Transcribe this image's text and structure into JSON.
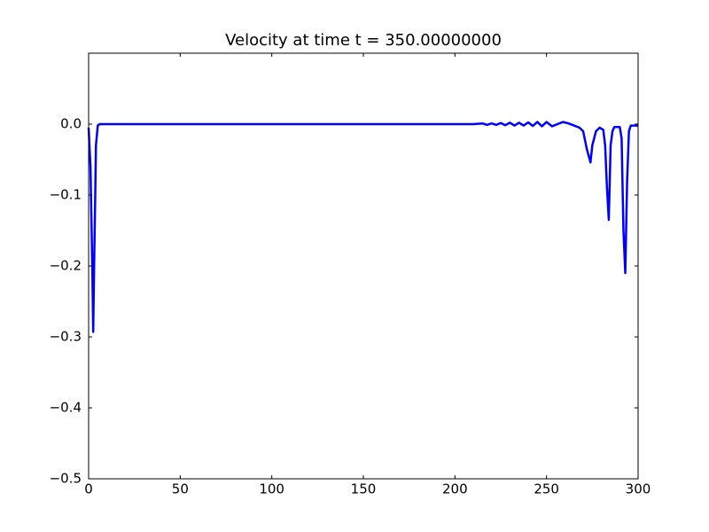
{
  "chart_data": {
    "type": "line",
    "title": "Velocity at time t =   350.00000000",
    "x": [
      0,
      1,
      2,
      2.5,
      3,
      3.5,
      4,
      5,
      6,
      50,
      100,
      150,
      200,
      210,
      215,
      217.5,
      220,
      222.5,
      225,
      227.5,
      230,
      232.5,
      235,
      237.5,
      240,
      242.5,
      245,
      247.5,
      250,
      253,
      256,
      259,
      262,
      265,
      268,
      270,
      272,
      274,
      275,
      277,
      279,
      281,
      282,
      283,
      284,
      285,
      286,
      287,
      290,
      291,
      292,
      293,
      294,
      295,
      296,
      300
    ],
    "series": [
      {
        "color": "#0000ff",
        "values": [
          -0.005,
          -0.06,
          -0.2,
          -0.293,
          -0.2,
          -0.12,
          -0.03,
          -0.002,
          0,
          0,
          0,
          0,
          0,
          0,
          0.001,
          -0.001,
          0.001,
          -0.001,
          0.0015,
          -0.0015,
          0.002,
          -0.002,
          0.002,
          -0.002,
          0.0025,
          -0.0025,
          0.003,
          -0.003,
          0.003,
          -0.003,
          0,
          0.003,
          0.001,
          -0.002,
          -0.005,
          -0.01,
          -0.035,
          -0.054,
          -0.03,
          -0.01,
          -0.005,
          -0.008,
          -0.03,
          -0.09,
          -0.135,
          -0.03,
          -0.01,
          -0.004,
          -0.004,
          -0.02,
          -0.15,
          -0.21,
          -0.08,
          -0.01,
          -0.002,
          -0.002
        ]
      }
    ],
    "xlim": [
      0,
      300
    ],
    "ylim": [
      -0.5,
      0.1
    ],
    "xticks": [
      0,
      50,
      100,
      150,
      200,
      250,
      300
    ],
    "yticks": [
      {
        "value": 0,
        "label": "0.0"
      },
      {
        "value": -0.1,
        "label": "−0.1"
      },
      {
        "value": -0.2,
        "label": "−0.2"
      },
      {
        "value": -0.3,
        "label": "−0.3"
      },
      {
        "value": -0.4,
        "label": "−0.4"
      },
      {
        "value": -0.5,
        "label": "−0.5"
      }
    ]
  }
}
